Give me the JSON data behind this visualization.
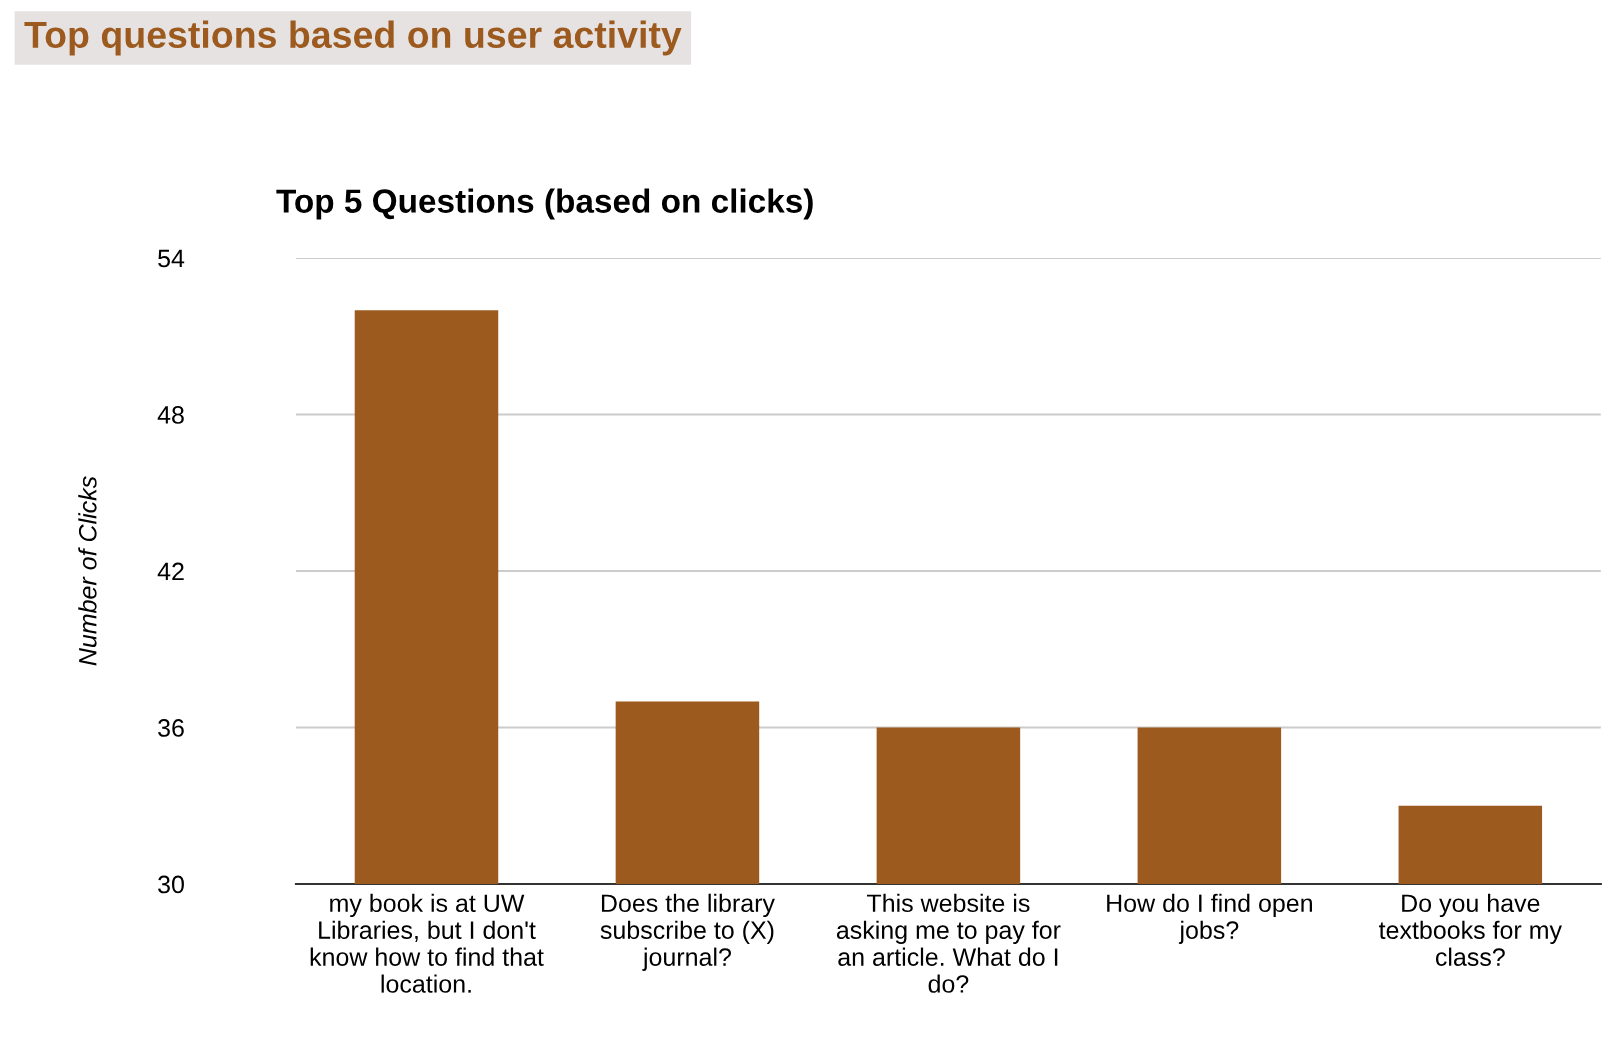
{
  "chart_data": {
    "type": "bar",
    "title": "Top 5 Questions (based on clicks)",
    "subtitle": "Top questions based on user activity",
    "ylabel": "Number of Clicks",
    "categories": [
      "my book is at UW\nLibraries, but I don't\nknow how to find that\nlocation.",
      "Does the library\nsubscribe to (X)\njournal?",
      "This website is\nasking me to pay for\nan article. What do I\ndo?",
      "How do I find open\njobs?",
      "Do you have\ntextbooks for my\nclass?"
    ],
    "values": [
      52,
      37,
      36,
      36,
      33
    ],
    "color": "#9c5a1f",
    "ylim": [
      30,
      54
    ],
    "yticks": [
      30,
      36,
      42,
      48,
      54
    ],
    "grid": "y",
    "legend": false
  }
}
